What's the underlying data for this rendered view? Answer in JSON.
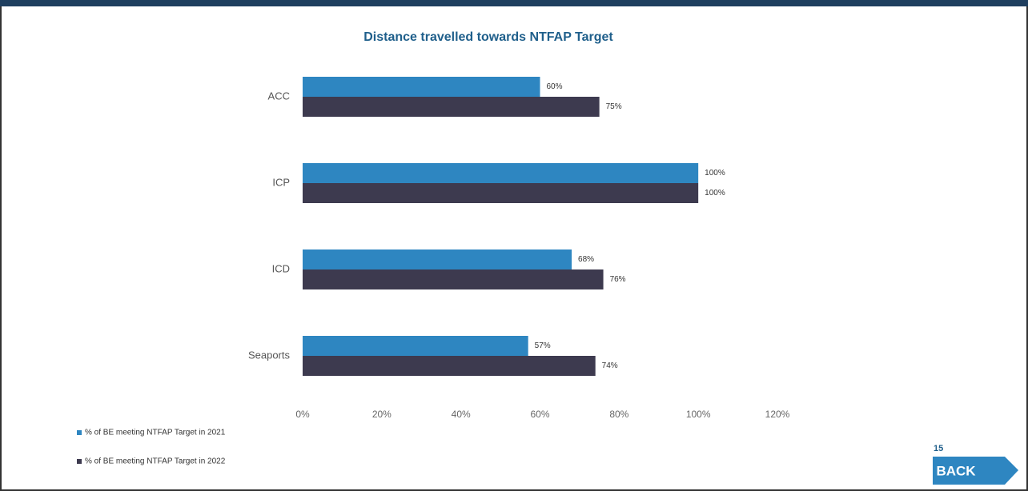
{
  "chart_data": {
    "type": "barh",
    "title": "Distance travelled towards NTFAP Target",
    "categories": [
      "ACC",
      "ICP",
      "ICD",
      "Seaports"
    ],
    "series": [
      {
        "name": "% of BE meeting NTFAP Target in 2021",
        "color": "#2e86c1",
        "values": [
          60,
          100,
          68,
          57
        ],
        "value_labels": [
          "60%",
          "100%",
          "68%",
          "57%"
        ]
      },
      {
        "name": "% of BE meeting NTFAP Target in 2022",
        "color": "#3d3a4f",
        "values": [
          75,
          100,
          76,
          74
        ],
        "value_labels": [
          "75%",
          "100%",
          "76%",
          "74%"
        ]
      }
    ],
    "xlim": [
      0,
      120
    ],
    "xticks": [
      {
        "value": 0,
        "label": "0%"
      },
      {
        "value": 20,
        "label": "20%"
      },
      {
        "value": 40,
        "label": "40%"
      },
      {
        "value": 60,
        "label": "60%"
      },
      {
        "value": 80,
        "label": "80%"
      },
      {
        "value": 100,
        "label": "100%"
      },
      {
        "value": 120,
        "label": "120%"
      }
    ],
    "grid": false
  },
  "page_number": "15",
  "button": "BACK"
}
